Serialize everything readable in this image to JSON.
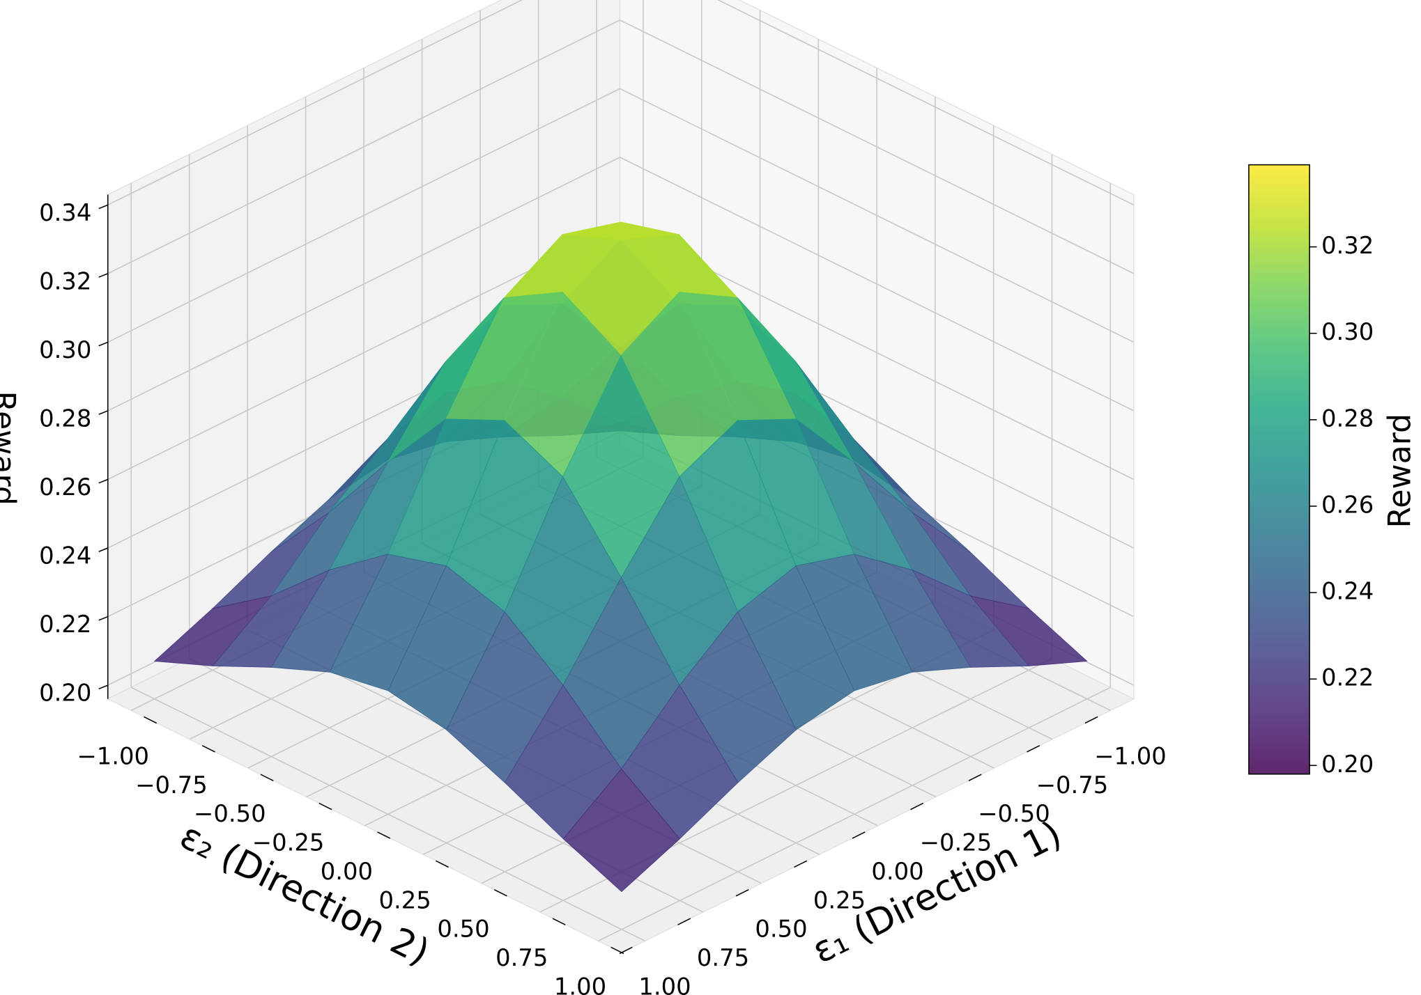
{
  "chart_data": {
    "type": "surface3d",
    "xlabel": "ε₁ (Direction 1)",
    "ylabel": "ε₂ (Direction 2)",
    "zlabel": "Reward",
    "colorbar_label": "Reward",
    "colormap": "viridis",
    "x": [
      -1,
      -0.75,
      -0.5,
      -0.25,
      0,
      0.25,
      0.5,
      0.75,
      1
    ],
    "y": [
      -1,
      -0.75,
      -0.5,
      -0.25,
      0,
      0.25,
      0.5,
      0.75,
      1
    ],
    "z": [
      [
        0.207,
        0.214,
        0.222,
        0.229,
        0.232,
        0.229,
        0.222,
        0.214,
        0.207
      ],
      [
        0.214,
        0.226,
        0.242,
        0.255,
        0.26,
        0.255,
        0.242,
        0.226,
        0.214
      ],
      [
        0.222,
        0.242,
        0.265,
        0.286,
        0.294,
        0.286,
        0.265,
        0.242,
        0.222
      ],
      [
        0.229,
        0.255,
        0.286,
        0.313,
        0.323,
        0.313,
        0.286,
        0.255,
        0.229
      ],
      [
        0.232,
        0.26,
        0.294,
        0.323,
        0.335,
        0.323,
        0.294,
        0.26,
        0.232
      ],
      [
        0.229,
        0.255,
        0.286,
        0.313,
        0.323,
        0.313,
        0.286,
        0.255,
        0.229
      ],
      [
        0.222,
        0.242,
        0.265,
        0.286,
        0.294,
        0.286,
        0.265,
        0.242,
        0.222
      ],
      [
        0.214,
        0.226,
        0.242,
        0.255,
        0.26,
        0.255,
        0.242,
        0.226,
        0.214
      ],
      [
        0.207,
        0.214,
        0.222,
        0.229,
        0.232,
        0.229,
        0.222,
        0.214,
        0.207
      ]
    ],
    "xlim": [
      -1.1,
      1.1
    ],
    "ylim": [
      -1.1,
      1.1
    ],
    "zlim": [
      0.196,
      0.343
    ],
    "clim": [
      0.198,
      0.339
    ],
    "xticks": [
      {
        "value": -1,
        "label": "−1.00"
      },
      {
        "value": -0.75,
        "label": "−0.75"
      },
      {
        "value": -0.5,
        "label": "−0.50"
      },
      {
        "value": -0.25,
        "label": "−0.25"
      },
      {
        "value": 0,
        "label": "0.00"
      },
      {
        "value": 0.25,
        "label": "0.25"
      },
      {
        "value": 0.5,
        "label": "0.50"
      },
      {
        "value": 0.75,
        "label": "0.75"
      },
      {
        "value": 1,
        "label": "1.00"
      }
    ],
    "yticks": [
      {
        "value": -1,
        "label": "−1.00"
      },
      {
        "value": -0.75,
        "label": "−0.75"
      },
      {
        "value": -0.5,
        "label": "−0.50"
      },
      {
        "value": -0.25,
        "label": "−0.25"
      },
      {
        "value": 0,
        "label": "0.00"
      },
      {
        "value": 0.25,
        "label": "0.25"
      },
      {
        "value": 0.5,
        "label": "0.50"
      },
      {
        "value": 0.75,
        "label": "0.75"
      },
      {
        "value": 1,
        "label": "1.00"
      }
    ],
    "zticks": [
      {
        "value": 0.2,
        "label": "0.20"
      },
      {
        "value": 0.22,
        "label": "0.22"
      },
      {
        "value": 0.24,
        "label": "0.24"
      },
      {
        "value": 0.26,
        "label": "0.26"
      },
      {
        "value": 0.28,
        "label": "0.28"
      },
      {
        "value": 0.3,
        "label": "0.30"
      },
      {
        "value": 0.32,
        "label": "0.32"
      },
      {
        "value": 0.34,
        "label": "0.34"
      }
    ],
    "cticks": [
      {
        "value": 0.2,
        "label": "0.20"
      },
      {
        "value": 0.22,
        "label": "0.22"
      },
      {
        "value": 0.24,
        "label": "0.24"
      },
      {
        "value": 0.26,
        "label": "0.26"
      },
      {
        "value": 0.28,
        "label": "0.28"
      },
      {
        "value": 0.3,
        "label": "0.30"
      },
      {
        "value": 0.32,
        "label": "0.32"
      }
    ],
    "grid": true
  }
}
